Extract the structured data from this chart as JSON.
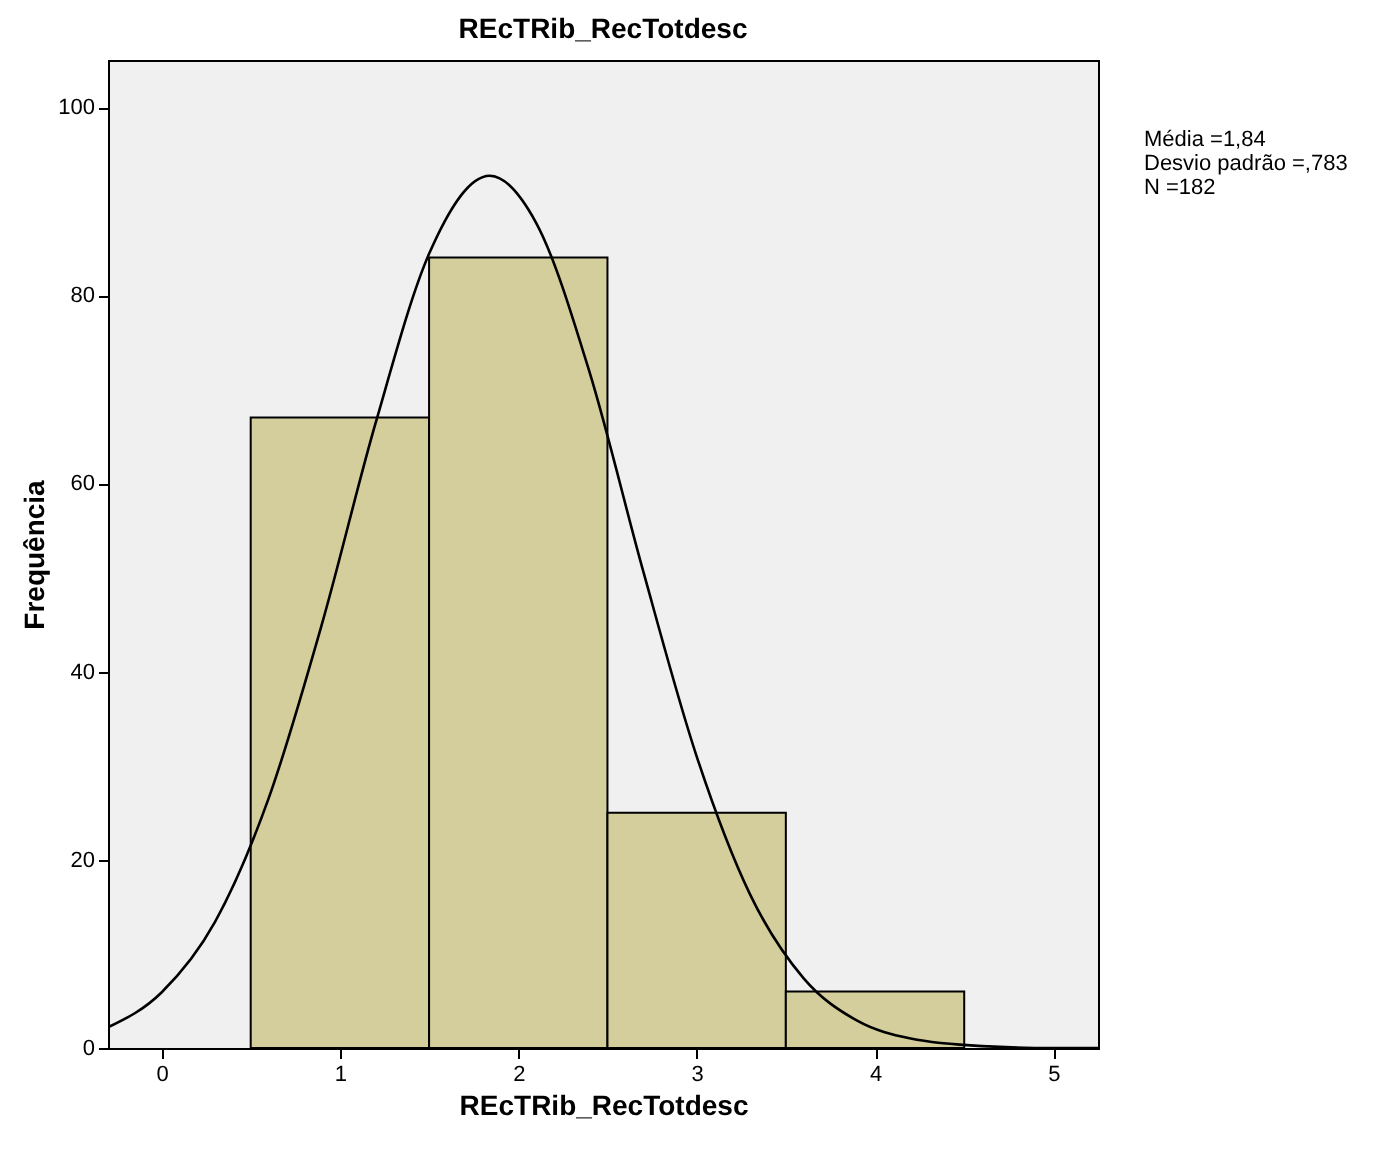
{
  "chart_data": {
    "type": "histogram",
    "title": "REcTRib_RecTotdesc",
    "xlabel": "REcTRib_RecTotdesc",
    "ylabel": "Frequência",
    "bins": [
      0.5,
      1.5,
      2.5,
      3.5,
      4.5
    ],
    "values": [
      67,
      84,
      25,
      6
    ],
    "color": "#d3ce9b",
    "series": [
      {
        "type": "line",
        "color": "#000000",
        "x": [
          -0.3,
          0,
          0.3,
          0.6,
          0.9,
          1.2,
          1.5,
          1.84,
          2.1,
          2.4,
          2.7,
          3.0,
          3.3,
          3.6,
          3.9,
          4.2,
          4.6,
          5.0,
          5.25
        ],
        "values": [
          2.2,
          5.9,
          13.4,
          26.5,
          45.1,
          66.4,
          84.4,
          92.7,
          87.7,
          71.8,
          50.7,
          31.0,
          16.3,
          7.4,
          2.9,
          1.0,
          0.2,
          0,
          0
        ]
      }
    ],
    "xlim": [
      -0.3,
      5.25
    ],
    "xticks": [
      0,
      1,
      2,
      3,
      4,
      5
    ],
    "ylim": [
      0,
      105
    ],
    "yticks": [
      0,
      20,
      40,
      60,
      80,
      100
    ],
    "grid": false,
    "annotations": [
      "Média =1,84",
      "Desvio padrão =,783",
      "N =182"
    ]
  }
}
